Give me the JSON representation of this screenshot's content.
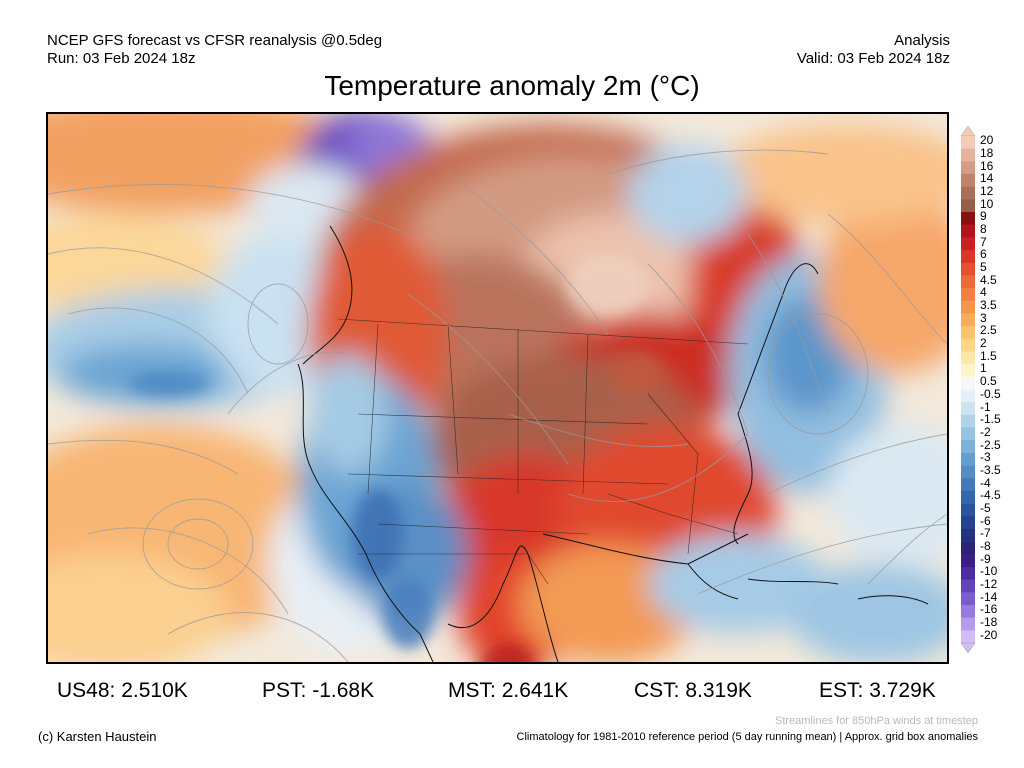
{
  "header": {
    "source_line": "NCEP GFS forecast vs CFSR reanalysis @0.5deg",
    "run_line": "Run: 03 Feb 2024 18z",
    "mode": "Analysis",
    "valid_line": "Valid: 03 Feb 2024 18z"
  },
  "title": "Temperature anomaly 2m (°C)",
  "colorbar": {
    "levels": [
      "20",
      "18",
      "16",
      "14",
      "12",
      "10",
      "9",
      "8",
      "7",
      "6",
      "5",
      "4.5",
      "4",
      "3.5",
      "3",
      "2.5",
      "2",
      "1.5",
      "1",
      "0.5",
      "-0.5",
      "-1",
      "-1.5",
      "-2",
      "-2.5",
      "-3",
      "-3.5",
      "-4",
      "-4.5",
      "-5",
      "-6",
      "-7",
      "-8",
      "-9",
      "-10",
      "-12",
      "-14",
      "-16",
      "-18",
      "-20"
    ],
    "colors": [
      "#f3cbb6",
      "#e8b39c",
      "#d49c83",
      "#bf846c",
      "#a97059",
      "#955e49",
      "#8a0f12",
      "#b1151b",
      "#cc1f22",
      "#dc3527",
      "#e5512f",
      "#ec6a38",
      "#f27f40",
      "#f6964a",
      "#f9ad5a",
      "#fbc46f",
      "#fdd786",
      "#fde7a8",
      "#fff4cc",
      "#f7f7f7",
      "#e4eff7",
      "#cce3f1",
      "#b1d3ea",
      "#96c2e2",
      "#7db1d9",
      "#669fcf",
      "#548dc4",
      "#4279b8",
      "#3565ab",
      "#2a539d",
      "#234290",
      "#223280",
      "#2c2376",
      "#3a1f86",
      "#4d2c9d",
      "#6643b8",
      "#7f5ccd",
      "#9a7ade",
      "#b59aea",
      "#d2bdf4"
    ]
  },
  "stats": [
    {
      "label": "US48:",
      "value": "2.510K"
    },
    {
      "label": "PST:",
      "value": "-1.68K"
    },
    {
      "label": "MST:",
      "value": "2.641K"
    },
    {
      "label": "CST:",
      "value": "8.319K"
    },
    {
      "label": "EST:",
      "value": "3.729K"
    }
  ],
  "footer": {
    "credit": "(c) Karsten Haustein",
    "streamlines_note": "Streamlines for 850hPa winds at timestep",
    "climatology_note": "Climatology for 1981-2010 reference period (5 day running mean) | Approx. grid box anomalies"
  }
}
